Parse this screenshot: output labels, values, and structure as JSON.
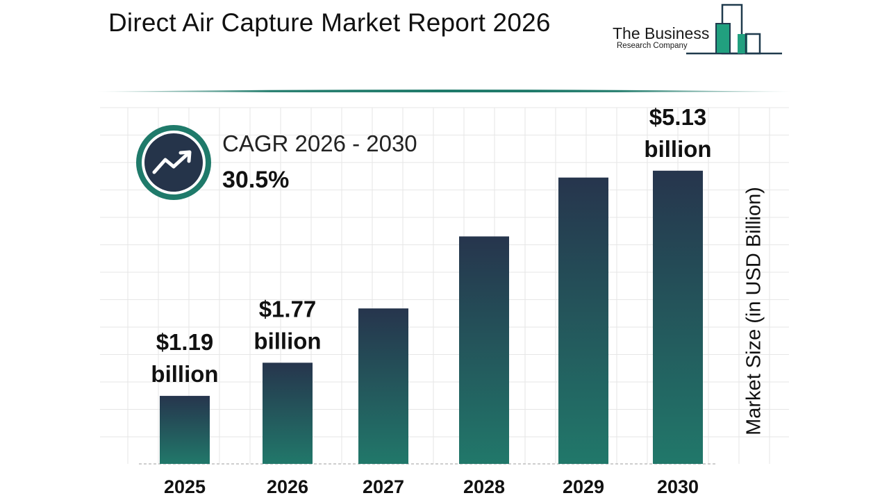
{
  "header": {
    "title": "Direct Air Capture Market Report 2026",
    "logo_line1": "The Business",
    "logo_line2": "Research Company"
  },
  "cagr": {
    "label": "CAGR 2026 - 2030",
    "value": "30.5%",
    "icon": "trend-up-icon"
  },
  "colors": {
    "bar_top": "#26354d",
    "bar_bottom": "#21786a",
    "accent": "#1f7a6a",
    "grid": "#e6e6e6"
  },
  "chart_data": {
    "type": "bar",
    "categories": [
      "2025",
      "2026",
      "2027",
      "2028",
      "2029",
      "2030"
    ],
    "values": [
      1.19,
      1.77,
      2.72,
      3.98,
      5.01,
      5.13
    ],
    "value_labels": [
      {
        "index": 0,
        "line1": "$1.19",
        "line2": "billion"
      },
      {
        "index": 1,
        "line1": "$1.77",
        "line2": "billion"
      },
      {
        "index": 5,
        "line1": "$5.13",
        "line2": "billion"
      }
    ],
    "ylabel": "Market Size (in USD Billion)",
    "ylim": [
      0,
      6.86
    ],
    "grid": true
  }
}
